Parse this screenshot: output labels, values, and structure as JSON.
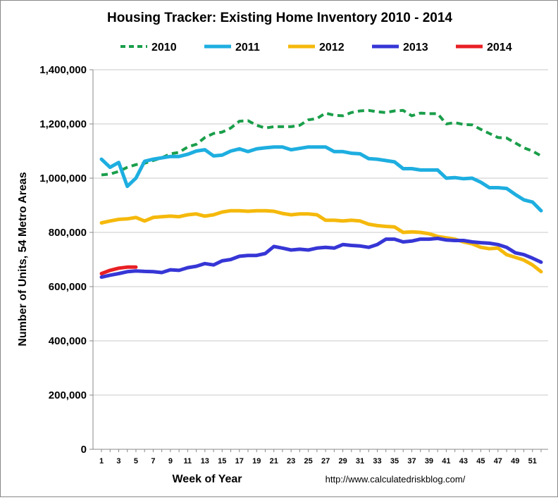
{
  "chart_data": {
    "type": "line",
    "title": "Housing Tracker: Existing Home Inventory 2010 - 2014",
    "xlabel": "Week of Year",
    "ylabel": "Number of Units, 54 Metro Areas",
    "source_note": "http://www.calculatedriskblog.com/",
    "ylim": [
      0,
      1400000
    ],
    "xlim": [
      1,
      52
    ],
    "y_ticks": [
      0,
      200000,
      400000,
      600000,
      800000,
      1000000,
      1200000,
      1400000
    ],
    "y_tick_labels": [
      "0",
      "200,000",
      "400,000",
      "600,000",
      "800,000",
      "1,000,000",
      "1,200,000",
      "1,400,000"
    ],
    "x_tick_labels": [
      "1",
      "3",
      "5",
      "7",
      "9",
      "11",
      "13",
      "15",
      "17",
      "19",
      "21",
      "23",
      "25",
      "27",
      "29",
      "31",
      "33",
      "35",
      "37",
      "39",
      "41",
      "43",
      "45",
      "47",
      "49",
      "51"
    ],
    "grid": true,
    "legend_position": "top",
    "series": [
      {
        "name": "2010",
        "color": "#1a9e4a",
        "dashed": true,
        "values": [
          1012000,
          1015000,
          1025000,
          1040000,
          1050000,
          1055000,
          1065000,
          1075000,
          1090000,
          1095000,
          1115000,
          1125000,
          1150000,
          1165000,
          1170000,
          1185000,
          1210000,
          1212000,
          1195000,
          1185000,
          1190000,
          1190000,
          1190000,
          1195000,
          1215000,
          1220000,
          1240000,
          1232000,
          1230000,
          1242000,
          1248000,
          1250000,
          1245000,
          1242000,
          1248000,
          1250000,
          1230000,
          1240000,
          1238000,
          1238000,
          1200000,
          1205000,
          1198000,
          1197000,
          1180000,
          1165000,
          1150000,
          1148000,
          1130000,
          1112000,
          1100000,
          1082000
        ]
      },
      {
        "name": "2011",
        "color": "#1eaee0",
        "dashed": false,
        "values": [
          1070000,
          1040000,
          1058000,
          970000,
          1000000,
          1062000,
          1070000,
          1075000,
          1080000,
          1080000,
          1088000,
          1100000,
          1105000,
          1082000,
          1085000,
          1100000,
          1108000,
          1098000,
          1108000,
          1112000,
          1115000,
          1115000,
          1105000,
          1110000,
          1115000,
          1115000,
          1115000,
          1098000,
          1098000,
          1092000,
          1090000,
          1072000,
          1070000,
          1065000,
          1060000,
          1035000,
          1035000,
          1030000,
          1030000,
          1030000,
          1000000,
          1002000,
          998000,
          1000000,
          985000,
          965000,
          965000,
          962000,
          940000,
          920000,
          912000,
          880000
        ]
      },
      {
        "name": "2012",
        "color": "#f5b90c",
        "dashed": false,
        "values": [
          835000,
          842000,
          848000,
          850000,
          855000,
          842000,
          855000,
          858000,
          860000,
          858000,
          865000,
          868000,
          860000,
          865000,
          875000,
          880000,
          880000,
          878000,
          880000,
          880000,
          878000,
          870000,
          865000,
          868000,
          868000,
          865000,
          845000,
          845000,
          842000,
          845000,
          842000,
          830000,
          825000,
          822000,
          820000,
          800000,
          802000,
          800000,
          795000,
          785000,
          780000,
          775000,
          765000,
          758000,
          745000,
          740000,
          742000,
          718000,
          708000,
          698000,
          680000,
          655000
        ]
      },
      {
        "name": "2013",
        "color": "#3636d6",
        "dashed": false,
        "values": [
          635000,
          642000,
          648000,
          655000,
          658000,
          656000,
          655000,
          652000,
          662000,
          660000,
          670000,
          675000,
          685000,
          680000,
          695000,
          700000,
          712000,
          715000,
          715000,
          722000,
          748000,
          742000,
          735000,
          738000,
          735000,
          742000,
          745000,
          742000,
          755000,
          752000,
          750000,
          745000,
          755000,
          775000,
          775000,
          765000,
          768000,
          775000,
          775000,
          778000,
          772000,
          770000,
          770000,
          765000,
          762000,
          760000,
          755000,
          745000,
          725000,
          718000,
          705000,
          690000
        ]
      },
      {
        "name": "2014",
        "color": "#e81f24",
        "dashed": false,
        "values": [
          648000,
          660000,
          668000,
          672000,
          672000
        ]
      }
    ]
  }
}
